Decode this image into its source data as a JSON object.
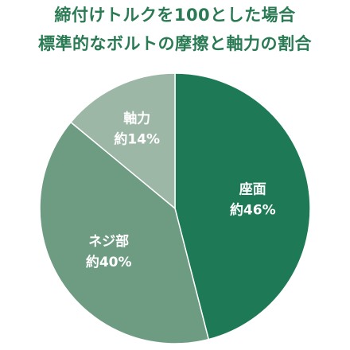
{
  "chart_data": {
    "type": "pie",
    "title_lines": [
      "締付けトルクを100とした場合",
      "標準的なボルトの摩擦と軸力の割合"
    ],
    "slices": [
      {
        "name": "座面",
        "value": 46,
        "value_label": "約46%",
        "color": "#1e7a56"
      },
      {
        "name": "ネジ部",
        "value": 40,
        "value_label": "約40%",
        "color": "#6e9c82"
      },
      {
        "name": "軸力",
        "value": 14,
        "value_label": "約14%",
        "color": "#9db7a7"
      }
    ]
  }
}
